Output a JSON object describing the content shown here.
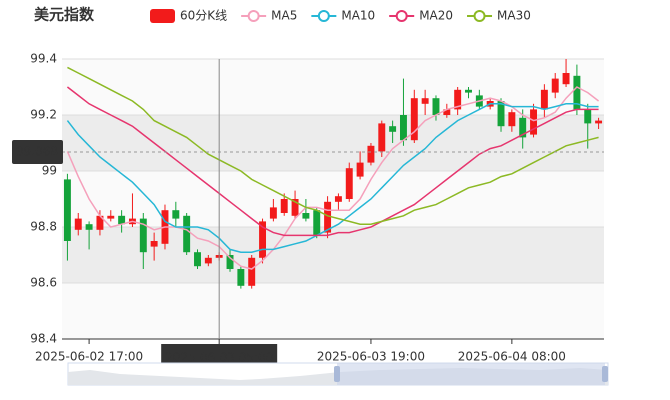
{
  "chart_data": {
    "type": "candlestick",
    "title": "美元指数",
    "categories": [
      null,
      null,
      "2025-06-02 17:00",
      null,
      null,
      null,
      null,
      null,
      null,
      null,
      null,
      null,
      null,
      null,
      "2025-06-03 05:00",
      null,
      null,
      null,
      null,
      null,
      null,
      null,
      null,
      null,
      null,
      null,
      null,
      null,
      "2025-06-03 19:00",
      null,
      null,
      null,
      null,
      null,
      null,
      null,
      null,
      null,
      null,
      null,
      null,
      "2025-06-04 08:00",
      null,
      null,
      null,
      null,
      null,
      null,
      null,
      null
    ],
    "axis_pointer": "2025-06-03 05:00",
    "candles": {
      "name": "60分K线",
      "up_color": "#f21b1b",
      "down_color": "#14a33a",
      "open": [
        98.97,
        98.79,
        98.81,
        98.79,
        98.83,
        98.84,
        98.81,
        98.83,
        98.73,
        98.74,
        98.86,
        98.84,
        98.71,
        98.67,
        98.69,
        98.7,
        98.65,
        98.59,
        98.69,
        98.83,
        98.85,
        98.84,
        98.85,
        98.86,
        98.78,
        98.89,
        98.9,
        98.98,
        99.03,
        99.07,
        99.16,
        99.2,
        99.11,
        99.24,
        99.26,
        99.2,
        99.22,
        99.29,
        99.27,
        99.23,
        99.25,
        99.16,
        99.19,
        99.13,
        99.22,
        99.28,
        99.31,
        99.34,
        99.22,
        99.17
      ],
      "close": [
        98.75,
        98.83,
        98.79,
        98.84,
        98.84,
        98.81,
        98.83,
        98.71,
        98.75,
        98.86,
        98.83,
        98.71,
        98.66,
        98.69,
        98.7,
        98.65,
        98.59,
        98.69,
        98.82,
        98.87,
        98.9,
        98.9,
        98.83,
        98.77,
        98.89,
        98.91,
        99.01,
        99.03,
        99.09,
        99.17,
        99.14,
        99.11,
        99.26,
        99.26,
        99.2,
        99.22,
        99.29,
        99.28,
        99.23,
        99.25,
        99.16,
        99.21,
        99.12,
        99.22,
        99.29,
        99.33,
        99.35,
        99.22,
        99.17,
        99.18
      ],
      "high": [
        98.99,
        98.85,
        98.82,
        98.86,
        98.86,
        98.86,
        98.92,
        98.85,
        98.78,
        98.88,
        98.89,
        98.85,
        98.72,
        98.7,
        98.71,
        98.72,
        98.66,
        98.7,
        98.83,
        98.9,
        98.92,
        98.93,
        98.9,
        98.87,
        98.91,
        98.92,
        99.03,
        99.07,
        99.1,
        99.18,
        99.18,
        99.33,
        99.29,
        99.29,
        99.27,
        99.24,
        99.3,
        99.3,
        99.29,
        99.26,
        99.26,
        99.22,
        99.22,
        99.24,
        99.31,
        99.35,
        99.4,
        99.38,
        99.24,
        99.19
      ],
      "low": [
        98.68,
        98.77,
        98.72,
        98.77,
        98.82,
        98.78,
        98.8,
        98.65,
        98.68,
        98.72,
        98.8,
        98.7,
        98.65,
        98.66,
        98.68,
        98.64,
        98.58,
        98.58,
        98.67,
        98.82,
        98.84,
        98.83,
        98.82,
        98.76,
        98.76,
        98.86,
        98.89,
        98.97,
        99.02,
        99.05,
        99.1,
        99.09,
        99.1,
        99.2,
        99.18,
        99.19,
        99.2,
        99.26,
        99.22,
        99.22,
        99.14,
        99.14,
        99.08,
        99.12,
        99.19,
        99.26,
        99.3,
        99.2,
        99.08,
        99.15
      ]
    },
    "series": [
      {
        "name": "MA5",
        "color": "#f5a0bb",
        "values": [
          99.07,
          98.98,
          98.9,
          98.84,
          98.8,
          98.81,
          98.82,
          98.81,
          98.79,
          98.8,
          98.8,
          98.79,
          98.76,
          98.75,
          98.73,
          98.69,
          98.66,
          98.65,
          98.68,
          98.72,
          98.77,
          98.83,
          98.87,
          98.87,
          98.86,
          98.86,
          98.86,
          98.9,
          98.97,
          99.03,
          99.08,
          99.11,
          99.14,
          99.18,
          99.2,
          99.22,
          99.23,
          99.24,
          99.25,
          99.26,
          99.25,
          99.23,
          99.2,
          99.18,
          99.19,
          99.21,
          99.26,
          99.3,
          99.28,
          99.25
        ]
      },
      {
        "name": "MA10",
        "color": "#26b7d6",
        "values": [
          99.18,
          99.13,
          99.09,
          99.05,
          99.02,
          98.99,
          98.96,
          98.92,
          98.88,
          98.82,
          98.8,
          98.8,
          98.8,
          98.79,
          98.76,
          98.72,
          98.71,
          98.71,
          98.72,
          98.72,
          98.73,
          98.74,
          98.75,
          98.77,
          98.79,
          98.81,
          98.84,
          98.87,
          98.9,
          98.94,
          98.98,
          99.02,
          99.05,
          99.08,
          99.12,
          99.15,
          99.18,
          99.2,
          99.22,
          99.24,
          99.24,
          99.23,
          99.23,
          99.23,
          99.22,
          99.23,
          99.24,
          99.24,
          99.23,
          99.23
        ]
      },
      {
        "name": "MA20",
        "color": "#e6356e",
        "values": [
          99.3,
          99.27,
          99.24,
          99.22,
          99.2,
          99.18,
          99.16,
          99.13,
          99.1,
          99.07,
          99.04,
          99.01,
          98.98,
          98.95,
          98.92,
          98.89,
          98.86,
          98.83,
          98.8,
          98.78,
          98.77,
          98.77,
          98.77,
          98.77,
          98.77,
          98.78,
          98.78,
          98.79,
          98.8,
          98.82,
          98.84,
          98.86,
          98.88,
          98.91,
          98.94,
          98.97,
          99.0,
          99.03,
          99.06,
          99.08,
          99.09,
          99.11,
          99.13,
          99.15,
          99.17,
          99.19,
          99.21,
          99.22,
          99.22,
          99.22
        ]
      },
      {
        "name": "MA30",
        "color": "#8cb924",
        "values": [
          99.37,
          99.35,
          99.33,
          99.31,
          99.29,
          99.27,
          99.25,
          99.22,
          99.18,
          99.16,
          99.14,
          99.12,
          99.09,
          99.06,
          99.04,
          99.02,
          99.0,
          98.97,
          98.95,
          98.93,
          98.91,
          98.89,
          98.87,
          98.86,
          98.84,
          98.83,
          98.82,
          98.81,
          98.81,
          98.82,
          98.83,
          98.84,
          98.86,
          98.87,
          98.88,
          98.9,
          98.92,
          98.94,
          98.95,
          98.96,
          98.98,
          98.99,
          99.01,
          99.03,
          99.05,
          99.07,
          99.09,
          99.1,
          99.11,
          99.12
        ]
      }
    ],
    "last_price": 99.068,
    "ylim": [
      98.4,
      99.4
    ],
    "yticks": [
      98.4,
      98.6,
      98.8,
      99,
      99.2,
      99.4
    ],
    "split_area": true
  }
}
